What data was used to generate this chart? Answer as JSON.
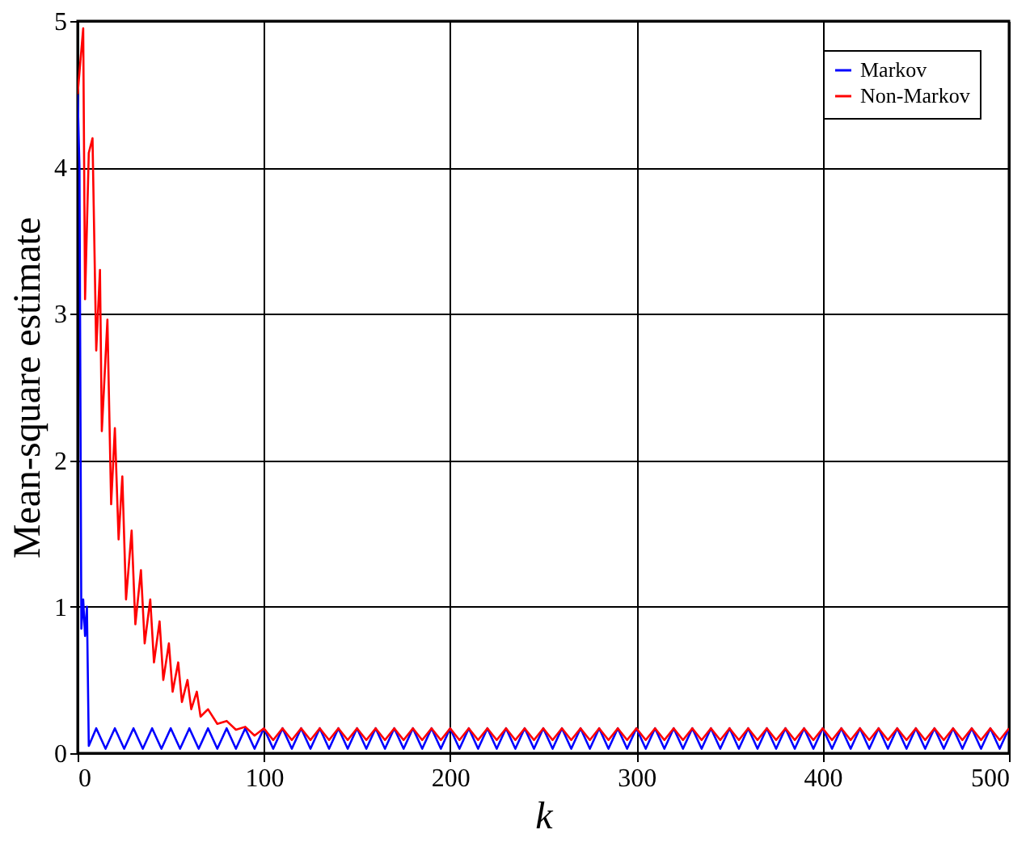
{
  "chart_data": {
    "type": "line",
    "xlabel": "k",
    "ylabel": "Mean-square estimate",
    "xlim": [
      0,
      500
    ],
    "xticks": [
      0,
      100,
      200,
      300,
      400,
      500
    ],
    "ylim": [
      0,
      5
    ],
    "yticks": [
      0,
      1,
      2,
      3,
      4,
      5
    ],
    "grid": true,
    "legend": "top right",
    "line_style": "solid",
    "marker": "none",
    "series": [
      {
        "name": "Markov",
        "color": "#0000ff",
        "x": [
          0,
          1,
          2,
          3,
          4,
          5,
          6,
          10,
          15,
          20,
          25,
          30,
          35,
          40,
          45,
          50,
          55,
          60,
          65,
          70,
          75,
          80,
          85,
          90,
          95,
          100,
          105,
          110,
          115,
          120,
          125,
          130,
          135,
          140,
          145,
          150,
          155,
          160,
          165,
          170,
          175,
          180,
          185,
          190,
          195,
          200,
          205,
          210,
          215,
          220,
          225,
          230,
          235,
          240,
          245,
          250,
          255,
          260,
          265,
          270,
          275,
          280,
          285,
          290,
          295,
          300,
          305,
          310,
          315,
          320,
          325,
          330,
          335,
          340,
          345,
          350,
          355,
          360,
          365,
          370,
          375,
          380,
          385,
          390,
          395,
          400,
          405,
          410,
          415,
          420,
          425,
          430,
          435,
          440,
          445,
          450,
          455,
          460,
          465,
          470,
          475,
          480,
          485,
          490,
          495,
          500
        ],
        "values": [
          4.5,
          4.0,
          0.85,
          1.05,
          0.8,
          1.0,
          0.05,
          0.17,
          0.03,
          0.17,
          0.03,
          0.17,
          0.03,
          0.17,
          0.03,
          0.17,
          0.03,
          0.17,
          0.03,
          0.17,
          0.03,
          0.17,
          0.03,
          0.17,
          0.03,
          0.17,
          0.03,
          0.17,
          0.03,
          0.17,
          0.03,
          0.17,
          0.03,
          0.17,
          0.03,
          0.17,
          0.03,
          0.17,
          0.03,
          0.17,
          0.03,
          0.17,
          0.03,
          0.17,
          0.03,
          0.17,
          0.03,
          0.17,
          0.03,
          0.17,
          0.03,
          0.17,
          0.03,
          0.17,
          0.03,
          0.17,
          0.03,
          0.17,
          0.03,
          0.17,
          0.03,
          0.17,
          0.03,
          0.17,
          0.03,
          0.17,
          0.03,
          0.17,
          0.03,
          0.17,
          0.03,
          0.17,
          0.03,
          0.17,
          0.03,
          0.17,
          0.03,
          0.17,
          0.03,
          0.17,
          0.03,
          0.17,
          0.03,
          0.17,
          0.03,
          0.17,
          0.03,
          0.17,
          0.03,
          0.17,
          0.03,
          0.17,
          0.03,
          0.17,
          0.03,
          0.17,
          0.03,
          0.17,
          0.03,
          0.17,
          0.03,
          0.17,
          0.03,
          0.17,
          0.03,
          0.17
        ]
      },
      {
        "name": "Non-Markov",
        "color": "#ff0000",
        "x": [
          0,
          3,
          4,
          6,
          8,
          10,
          12,
          13,
          16,
          18,
          20,
          22,
          24,
          26,
          29,
          31,
          34,
          36,
          39,
          41,
          44,
          46,
          49,
          51,
          54,
          56,
          59,
          61,
          64,
          66,
          70,
          75,
          80,
          85,
          90,
          95,
          100,
          105,
          110,
          115,
          120,
          125,
          130,
          135,
          140,
          145,
          150,
          155,
          160,
          165,
          170,
          175,
          180,
          185,
          190,
          195,
          200,
          205,
          210,
          215,
          220,
          225,
          230,
          235,
          240,
          245,
          250,
          255,
          260,
          265,
          270,
          275,
          280,
          285,
          290,
          295,
          300,
          305,
          310,
          315,
          320,
          325,
          330,
          335,
          340,
          345,
          350,
          355,
          360,
          365,
          370,
          375,
          380,
          385,
          390,
          395,
          400,
          405,
          410,
          415,
          420,
          425,
          430,
          435,
          440,
          445,
          450,
          455,
          460,
          465,
          470,
          475,
          480,
          485,
          490,
          495,
          500
        ],
        "values": [
          4.5,
          4.95,
          3.1,
          4.1,
          4.2,
          2.75,
          3.3,
          2.2,
          2.96,
          1.7,
          2.22,
          1.46,
          1.89,
          1.05,
          1.52,
          0.88,
          1.25,
          0.75,
          1.05,
          0.62,
          0.9,
          0.5,
          0.75,
          0.42,
          0.62,
          0.35,
          0.5,
          0.3,
          0.42,
          0.25,
          0.3,
          0.2,
          0.22,
          0.16,
          0.18,
          0.12,
          0.17,
          0.09,
          0.17,
          0.09,
          0.17,
          0.09,
          0.17,
          0.09,
          0.17,
          0.09,
          0.17,
          0.09,
          0.17,
          0.09,
          0.17,
          0.09,
          0.17,
          0.09,
          0.17,
          0.09,
          0.17,
          0.09,
          0.17,
          0.09,
          0.17,
          0.09,
          0.17,
          0.09,
          0.17,
          0.09,
          0.17,
          0.09,
          0.17,
          0.09,
          0.17,
          0.09,
          0.17,
          0.09,
          0.17,
          0.09,
          0.17,
          0.09,
          0.17,
          0.09,
          0.17,
          0.09,
          0.17,
          0.09,
          0.17,
          0.09,
          0.17,
          0.09,
          0.17,
          0.09,
          0.17,
          0.09,
          0.17,
          0.09,
          0.17,
          0.09,
          0.17,
          0.09,
          0.17,
          0.09,
          0.17,
          0.09,
          0.17,
          0.09,
          0.17,
          0.09,
          0.17,
          0.09,
          0.17,
          0.09,
          0.17,
          0.09,
          0.17,
          0.09,
          0.17,
          0.09,
          0.17
        ]
      }
    ]
  }
}
